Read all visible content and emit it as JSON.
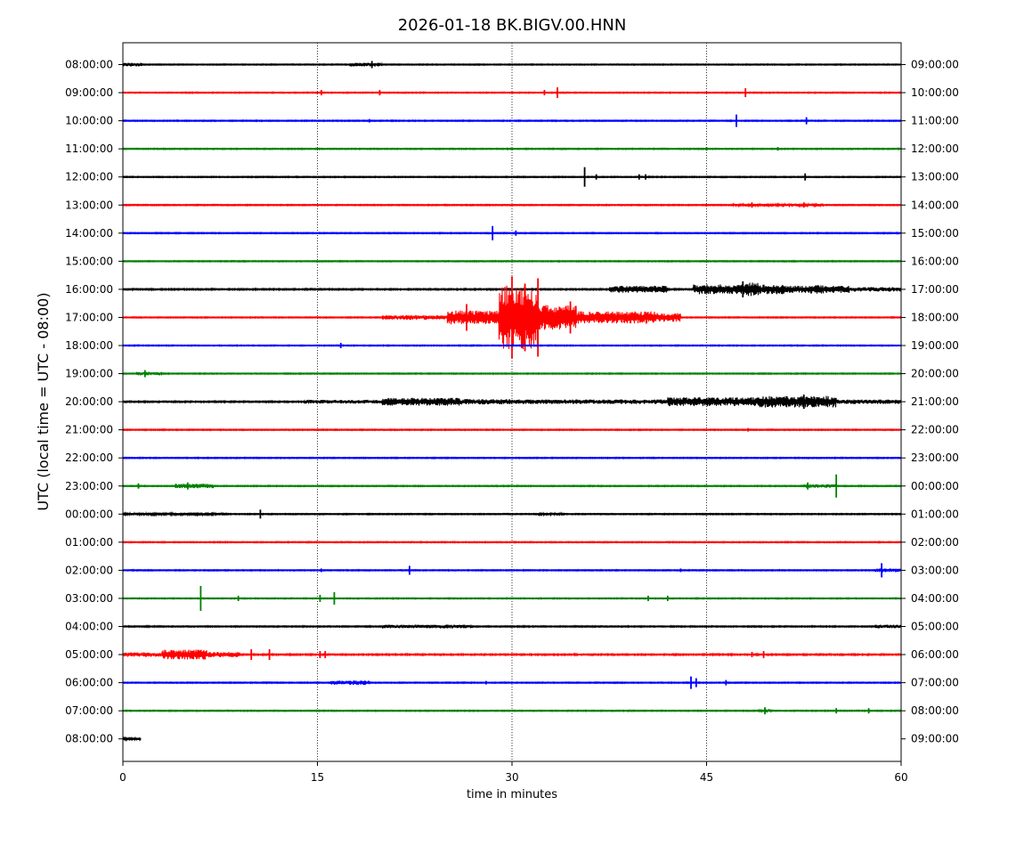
{
  "chart_data": {
    "type": "line",
    "title": "2026-01-18 BK.BIGV.00.HNN",
    "xlabel": "time in minutes",
    "ylabel": "UTC (local time = UTC - 08:00)",
    "xlim": [
      0,
      60
    ],
    "x_ticks": [
      "0",
      "15",
      "30",
      "45",
      "60"
    ],
    "grid": "vertical dotted at 15, 30, 45",
    "colors": [
      "#000000",
      "#ff0000",
      "#0000ff",
      "#008000"
    ],
    "rows": [
      {
        "left": "08:00:00",
        "right": "09:00:00",
        "color": "#000000",
        "noise": 0.6,
        "end": 60,
        "env": [
          [
            0,
            1.5,
            2
          ],
          [
            17.5,
            20,
            2
          ]
        ],
        "spikes": [
          [
            19.2,
            4
          ]
        ]
      },
      {
        "left": "09:00:00",
        "right": "10:00:00",
        "color": "#ff0000",
        "noise": 0.6,
        "end": 60,
        "env": [],
        "spikes": [
          [
            15.3,
            3
          ],
          [
            19.8,
            3
          ],
          [
            32.5,
            3
          ],
          [
            33.5,
            6
          ],
          [
            48,
            5
          ]
        ]
      },
      {
        "left": "10:00:00",
        "right": "11:00:00",
        "color": "#0000ff",
        "noise": 0.6,
        "end": 60,
        "env": [],
        "spikes": [
          [
            47.3,
            7
          ],
          [
            52.7,
            4
          ],
          [
            19,
            2
          ]
        ]
      },
      {
        "left": "11:00:00",
        "right": "12:00:00",
        "color": "#008000",
        "noise": 0.6,
        "end": 60,
        "env": [],
        "spikes": [
          [
            45,
            2
          ],
          [
            50.5,
            2
          ]
        ]
      },
      {
        "left": "12:00:00",
        "right": "13:00:00",
        "color": "#000000",
        "noise": 0.6,
        "end": 60,
        "env": [],
        "spikes": [
          [
            35.6,
            11
          ],
          [
            36.5,
            3
          ],
          [
            39.8,
            3
          ],
          [
            40.3,
            3
          ],
          [
            52.6,
            4
          ]
        ]
      },
      {
        "left": "13:00:00",
        "right": "14:00:00",
        "color": "#ff0000",
        "noise": 0.6,
        "end": 60,
        "env": [
          [
            47,
            52,
            1.5
          ],
          [
            52,
            54,
            1.5
          ]
        ],
        "spikes": [
          [
            48.5,
            3
          ],
          [
            52.5,
            3
          ]
        ]
      },
      {
        "left": "14:00:00",
        "right": "15:00:00",
        "color": "#0000ff",
        "noise": 0.6,
        "end": 60,
        "env": [],
        "spikes": [
          [
            28.5,
            8
          ],
          [
            30.3,
            3
          ]
        ]
      },
      {
        "left": "15:00:00",
        "right": "16:00:00",
        "color": "#008000",
        "noise": 0.6,
        "end": 60,
        "env": [],
        "spikes": []
      },
      {
        "left": "16:00:00",
        "right": "17:00:00",
        "color": "#000000",
        "noise": 0.8,
        "end": 60,
        "env": [
          [
            37.5,
            42,
            4
          ],
          [
            44,
            51,
            5.5
          ],
          [
            48,
            49,
            8
          ],
          [
            50.5,
            56,
            4
          ],
          [
            53,
            54,
            5
          ],
          [
            56,
            60,
            2.5
          ]
        ],
        "spikes": [
          [
            47.8,
            9
          ]
        ]
      },
      {
        "left": "17:00:00",
        "right": "18:00:00",
        "color": "#ff0000",
        "noise": 0.6,
        "end": 60,
        "env": [
          [
            20,
            25,
            2.5
          ],
          [
            25,
            29,
            8
          ],
          [
            29,
            32,
            36
          ],
          [
            32,
            35,
            14
          ],
          [
            35,
            41,
            7
          ],
          [
            41,
            43,
            5
          ]
        ],
        "spikes": [
          [
            30,
            46
          ],
          [
            31,
            38
          ],
          [
            32,
            44
          ],
          [
            26.5,
            15
          ],
          [
            34.5,
            18
          ]
        ]
      },
      {
        "left": "18:00:00",
        "right": "19:00:00",
        "color": "#0000ff",
        "noise": 0.6,
        "end": 60,
        "env": [],
        "spikes": [
          [
            16.8,
            3
          ]
        ]
      },
      {
        "left": "19:00:00",
        "right": "20:00:00",
        "color": "#008000",
        "noise": 0.6,
        "end": 60,
        "env": [
          [
            1,
            3,
            2
          ]
        ],
        "spikes": [
          [
            1.7,
            4
          ]
        ]
      },
      {
        "left": "20:00:00",
        "right": "21:00:00",
        "color": "#000000",
        "noise": 0.8,
        "end": 60,
        "env": [
          [
            14,
            20,
            2
          ],
          [
            20,
            26,
            4.5
          ],
          [
            26,
            30,
            3
          ],
          [
            30,
            42,
            2.5
          ],
          [
            42,
            49,
            5
          ],
          [
            49,
            55,
            6.5
          ],
          [
            55,
            60,
            2.5
          ]
        ],
        "spikes": [
          [
            52.5,
            8
          ]
        ]
      },
      {
        "left": "21:00:00",
        "right": "22:00:00",
        "color": "#ff0000",
        "noise": 0.6,
        "end": 60,
        "env": [],
        "spikes": [
          [
            48.2,
            2
          ]
        ]
      },
      {
        "left": "22:00:00",
        "right": "23:00:00",
        "color": "#0000ff",
        "noise": 0.6,
        "end": 60,
        "env": [],
        "spikes": []
      },
      {
        "left": "23:00:00",
        "right": "00:00:00",
        "color": "#008000",
        "noise": 0.6,
        "end": 60,
        "env": [
          [
            4,
            7,
            2.5
          ],
          [
            52.5,
            55,
            2
          ]
        ],
        "spikes": [
          [
            5,
            4
          ],
          [
            1.2,
            3
          ],
          [
            55,
            13
          ],
          [
            52.8,
            4
          ]
        ]
      },
      {
        "left": "00:00:00",
        "right": "01:00:00",
        "color": "#000000",
        "noise": 0.6,
        "end": 60,
        "env": [
          [
            0,
            8,
            1.5
          ],
          [
            32,
            34,
            1.5
          ]
        ],
        "spikes": [
          [
            10.6,
            5
          ],
          [
            6.9,
            2
          ]
        ]
      },
      {
        "left": "01:00:00",
        "right": "02:00:00",
        "color": "#ff0000",
        "noise": 0.6,
        "end": 60,
        "env": [],
        "spikes": []
      },
      {
        "left": "02:00:00",
        "right": "03:00:00",
        "color": "#0000ff",
        "noise": 0.6,
        "end": 60,
        "env": [
          [
            58,
            60,
            2
          ]
        ],
        "spikes": [
          [
            22.1,
            5
          ],
          [
            58.5,
            8
          ],
          [
            15.3,
            2
          ],
          [
            43,
            2
          ]
        ]
      },
      {
        "left": "03:00:00",
        "right": "04:00:00",
        "color": "#008000",
        "noise": 0.6,
        "end": 60,
        "env": [],
        "spikes": [
          [
            6,
            14
          ],
          [
            16.3,
            7
          ],
          [
            15.2,
            4
          ],
          [
            8.9,
            3
          ],
          [
            40.5,
            3
          ],
          [
            42,
            3
          ]
        ]
      },
      {
        "left": "04:00:00",
        "right": "05:00:00",
        "color": "#000000",
        "noise": 0.7,
        "end": 60,
        "env": [
          [
            20,
            27,
            2
          ],
          [
            58,
            60,
            2
          ]
        ],
        "spikes": [
          [
            25,
            2
          ]
        ]
      },
      {
        "left": "05:00:00",
        "right": "06:00:00",
        "color": "#ff0000",
        "noise": 0.8,
        "end": 60,
        "env": [
          [
            0,
            3,
            2.5
          ],
          [
            3,
            6.5,
            5.5
          ],
          [
            6.5,
            9,
            3
          ]
        ],
        "spikes": [
          [
            9.9,
            6
          ],
          [
            11.3,
            6
          ],
          [
            15.2,
            4
          ],
          [
            15.6,
            4
          ],
          [
            48.5,
            3
          ],
          [
            49.4,
            4
          ]
        ]
      },
      {
        "left": "06:00:00",
        "right": "07:00:00",
        "color": "#0000ff",
        "noise": 0.6,
        "end": 60,
        "env": [
          [
            16,
            19,
            2.5
          ]
        ],
        "spikes": [
          [
            43.8,
            7
          ],
          [
            44.2,
            5
          ],
          [
            46.5,
            3
          ],
          [
            28,
            2
          ]
        ]
      },
      {
        "left": "07:00:00",
        "right": "08:00:00",
        "color": "#008000",
        "noise": 0.6,
        "end": 60,
        "env": [
          [
            49,
            50,
            2
          ]
        ],
        "spikes": [
          [
            49.5,
            4
          ],
          [
            55,
            3
          ],
          [
            57.5,
            3
          ]
        ]
      },
      {
        "left": "08:00:00",
        "right": "09:00:00",
        "color": "#000000",
        "noise": 1.2,
        "end": 1.4,
        "env": [],
        "spikes": []
      }
    ]
  }
}
